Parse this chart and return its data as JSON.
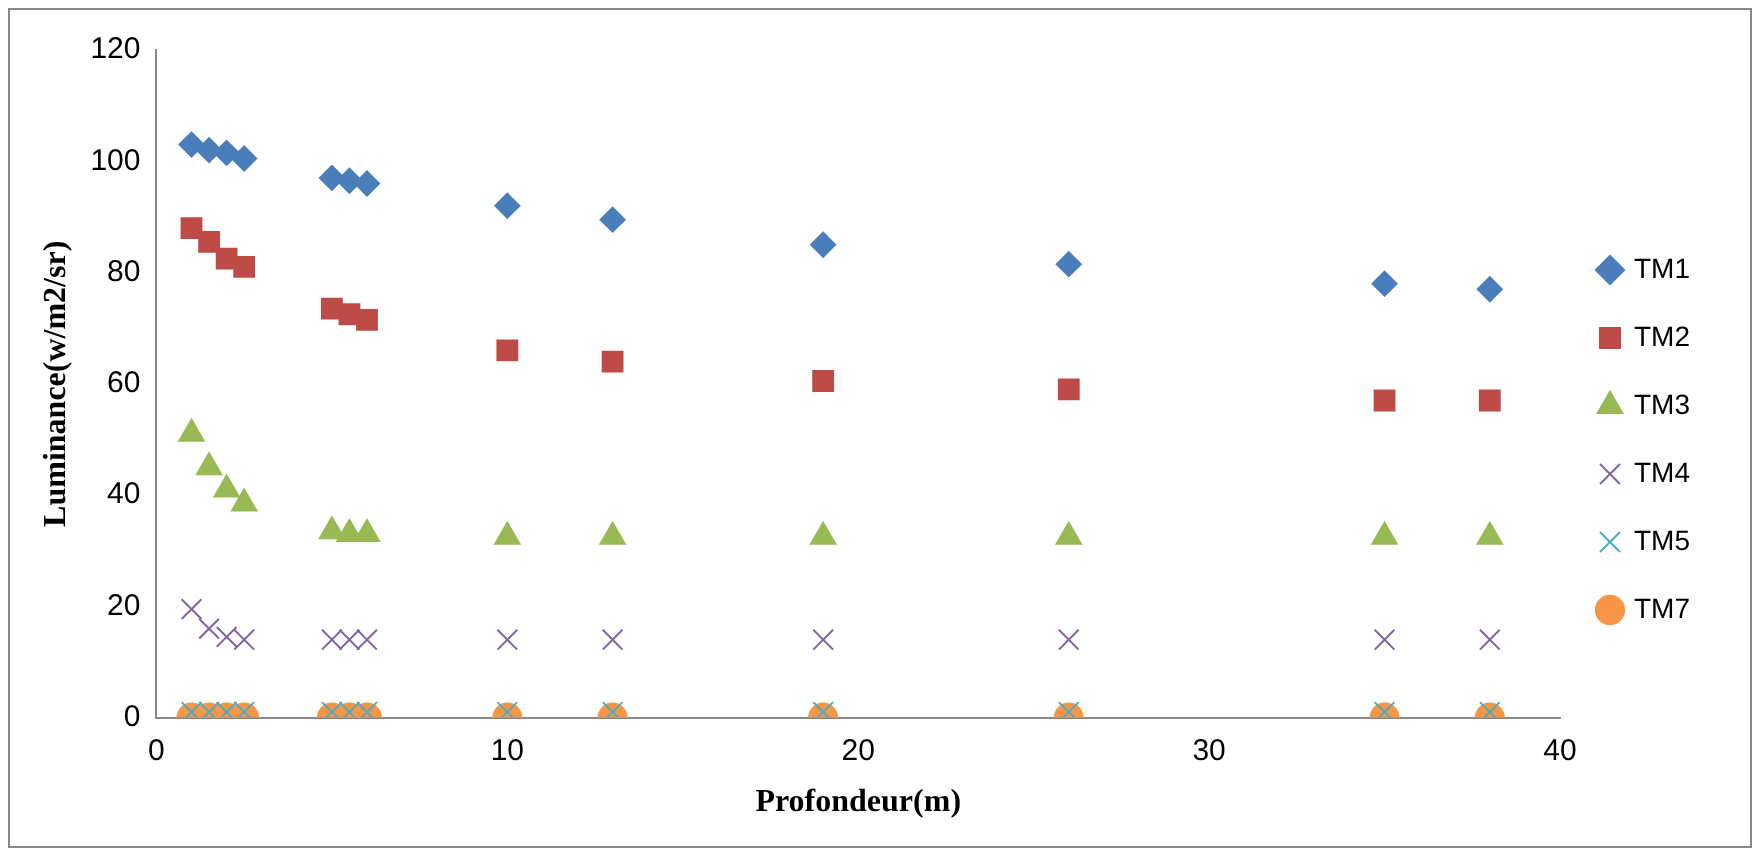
{
  "chart_data": {
    "type": "scatter",
    "xlabel": "Profondeur(m)",
    "ylabel": "Luminance(w/m2/sr)",
    "x": [
      1,
      1.5,
      2,
      2.5,
      5,
      5.5,
      6,
      10,
      13,
      19,
      26,
      35,
      38
    ],
    "xlim": [
      0,
      40
    ],
    "xticks": [
      0,
      10,
      20,
      30,
      40
    ],
    "ylim": [
      0,
      120
    ],
    "yticks": [
      0,
      20,
      40,
      60,
      80,
      100,
      120
    ],
    "grid": false,
    "legend": "right",
    "series": [
      {
        "name": "TM1",
        "color": "#4a7ebb",
        "marker": "diamond",
        "values": [
          103,
          102,
          101.5,
          100.5,
          97,
          96.5,
          96,
          92,
          89.5,
          85,
          81.5,
          78,
          77
        ]
      },
      {
        "name": "TM2",
        "color": "#be4b48",
        "marker": "square",
        "values": [
          88,
          85.5,
          82.5,
          81,
          73.5,
          72.5,
          71.5,
          66,
          64,
          60.5,
          59,
          57,
          57
        ]
      },
      {
        "name": "TM3",
        "color": "#98b954",
        "marker": "triangle",
        "values": [
          51,
          45,
          41,
          38.5,
          33.5,
          33,
          33,
          32.5,
          32.5,
          32.5,
          32.5,
          32.5,
          32.5
        ]
      },
      {
        "name": "TM4",
        "color": "#8064a2",
        "marker": "cross",
        "values": [
          19.5,
          16,
          14.5,
          14,
          14,
          14,
          14,
          14,
          14,
          14,
          14,
          14,
          14
        ]
      },
      {
        "name": "TM5",
        "color": "#4bacc6",
        "marker": "cross",
        "values": [
          1,
          1,
          1,
          1,
          1,
          1,
          1,
          1,
          1,
          1,
          1,
          1,
          1
        ]
      },
      {
        "name": "TM7",
        "color": "#f79646",
        "marker": "circle",
        "values": [
          0,
          0,
          0,
          0,
          0,
          0,
          0,
          0,
          0,
          0,
          0,
          0,
          0
        ]
      }
    ]
  }
}
